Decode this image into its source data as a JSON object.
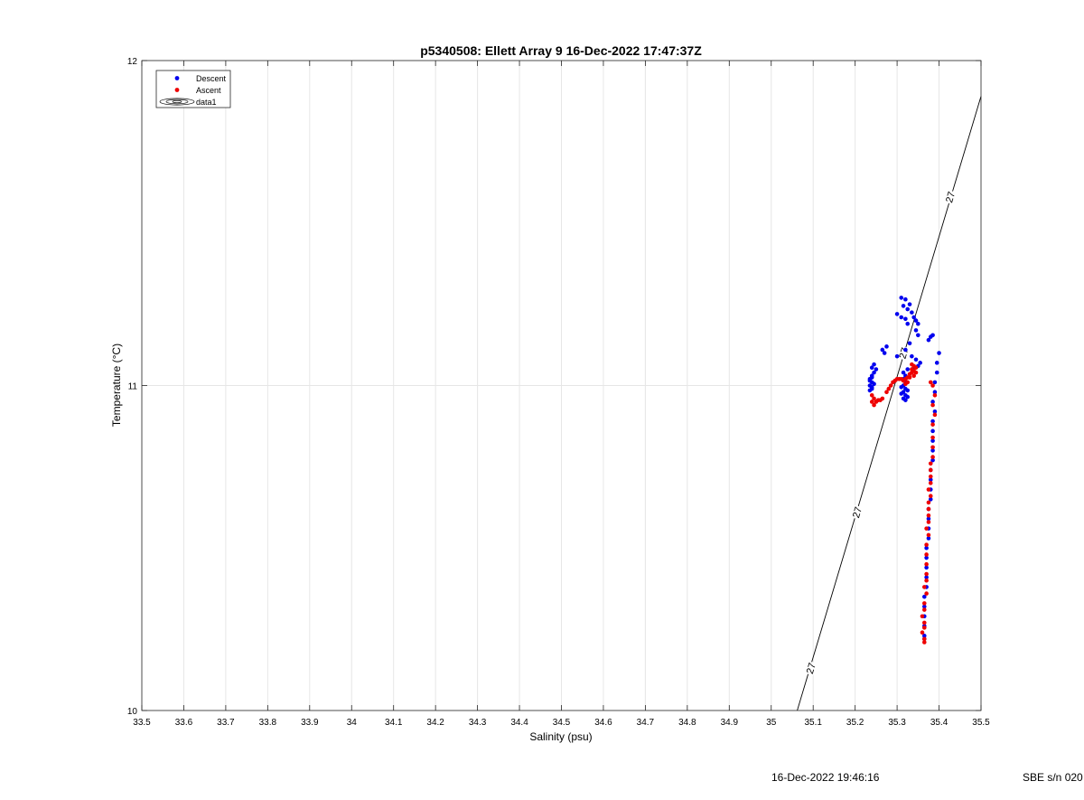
{
  "footer": {
    "timestamp": "16-Dec-2022 19:46:16",
    "serial": "SBE s/n 020"
  },
  "chart_data": {
    "type": "scatter",
    "title": "p5340508: Ellett Array 9 16-Dec-2022 17:47:37Z",
    "xlabel": "Salinity (psu)",
    "ylabel": "Temperature (°C)",
    "xlim": [
      33.5,
      35.5
    ],
    "ylim": [
      10,
      12
    ],
    "xticks": [
      33.5,
      33.6,
      33.7,
      33.8,
      33.9,
      34,
      34.1,
      34.2,
      34.3,
      34.4,
      34.5,
      34.6,
      34.7,
      34.8,
      34.9,
      35,
      35.1,
      35.2,
      35.3,
      35.4,
      35.5
    ],
    "xtick_labels": [
      "33.5",
      "33.6",
      "33.7",
      "33.8",
      "33.9",
      "34",
      "34.1",
      "34.2",
      "34.3",
      "34.4",
      "34.5",
      "34.6",
      "34.7",
      "34.8",
      "34.9",
      "35",
      "35.1",
      "35.2",
      "35.3",
      "35.4",
      "35.5"
    ],
    "yticks": [
      10,
      11,
      12
    ],
    "ytick_labels": [
      "10",
      "11",
      "12"
    ],
    "grid": true,
    "legend": {
      "placement": "top-left",
      "entries": [
        "Descent",
        "Ascent",
        "data1"
      ]
    },
    "colors": {
      "descent": "#0000ee",
      "ascent": "#ee0000",
      "contour": "#000000",
      "grid": "#e6e6e6"
    },
    "contour": {
      "level_label": "27",
      "points": [
        [
          35.062,
          10.0
        ],
        [
          35.5,
          11.89
        ]
      ],
      "labels": [
        {
          "x": 35.094,
          "y": 10.13
        },
        {
          "x": 35.204,
          "y": 10.61
        },
        {
          "x": 35.315,
          "y": 11.1
        },
        {
          "x": 35.426,
          "y": 11.58
        }
      ]
    },
    "series": [
      {
        "name": "Descent",
        "points": [
          [
            35.31,
            11.27
          ],
          [
            35.32,
            11.265
          ],
          [
            35.33,
            11.25
          ],
          [
            35.315,
            11.245
          ],
          [
            35.325,
            11.235
          ],
          [
            35.3,
            11.22
          ],
          [
            35.335,
            11.225
          ],
          [
            35.34,
            11.21
          ],
          [
            35.31,
            11.21
          ],
          [
            35.345,
            11.2
          ],
          [
            35.35,
            11.19
          ],
          [
            35.325,
            11.19
          ],
          [
            35.32,
            11.205
          ],
          [
            35.345,
            11.17
          ],
          [
            35.35,
            11.155
          ],
          [
            35.38,
            11.15
          ],
          [
            35.385,
            11.155
          ],
          [
            35.375,
            11.14
          ],
          [
            35.33,
            11.13
          ],
          [
            35.32,
            11.11
          ],
          [
            35.335,
            11.09
          ],
          [
            35.345,
            11.08
          ],
          [
            35.355,
            11.07
          ],
          [
            35.35,
            11.06
          ],
          [
            35.34,
            11.055
          ],
          [
            35.325,
            11.05
          ],
          [
            35.25,
            11.05
          ],
          [
            35.245,
            11.065
          ],
          [
            35.24,
            11.055
          ],
          [
            35.245,
            11.04
          ],
          [
            35.24,
            11.03
          ],
          [
            35.235,
            11.02
          ],
          [
            35.24,
            11.01
          ],
          [
            35.235,
            11.0
          ],
          [
            35.24,
            10.99
          ],
          [
            35.235,
            10.985
          ],
          [
            35.24,
            10.995
          ],
          [
            35.245,
            11.005
          ],
          [
            35.235,
            11.015
          ],
          [
            35.24,
            11.025
          ],
          [
            35.27,
            11.1
          ],
          [
            35.275,
            11.12
          ],
          [
            35.265,
            11.11
          ],
          [
            35.3,
            11.09
          ],
          [
            35.315,
            11.04
          ],
          [
            35.32,
            11.03
          ],
          [
            35.315,
            11.02
          ],
          [
            35.32,
            11.01
          ],
          [
            35.315,
            11.0
          ],
          [
            35.32,
            10.99
          ],
          [
            35.315,
            10.98
          ],
          [
            35.32,
            10.97
          ],
          [
            35.315,
            10.96
          ],
          [
            35.32,
            10.955
          ],
          [
            35.325,
            10.965
          ],
          [
            35.31,
            10.975
          ],
          [
            35.325,
            10.985
          ],
          [
            35.31,
            10.995
          ],
          [
            35.4,
            11.1
          ],
          [
            35.395,
            11.07
          ],
          [
            35.395,
            11.04
          ],
          [
            35.39,
            11.01
          ],
          [
            35.39,
            10.98
          ],
          [
            35.385,
            10.95
          ],
          [
            35.39,
            10.92
          ],
          [
            35.385,
            10.89
          ],
          [
            35.385,
            10.86
          ],
          [
            35.385,
            10.83
          ],
          [
            35.385,
            10.8
          ],
          [
            35.385,
            10.77
          ],
          [
            35.38,
            10.74
          ],
          [
            35.38,
            10.71
          ],
          [
            35.38,
            10.68
          ],
          [
            35.38,
            10.65
          ],
          [
            35.375,
            10.62
          ],
          [
            35.375,
            10.59
          ],
          [
            35.375,
            10.56
          ],
          [
            35.375,
            10.53
          ],
          [
            35.37,
            10.5
          ],
          [
            35.37,
            10.47
          ],
          [
            35.37,
            10.44
          ],
          [
            35.37,
            10.41
          ],
          [
            35.37,
            10.38
          ],
          [
            35.365,
            10.35
          ],
          [
            35.365,
            10.32
          ],
          [
            35.365,
            10.29
          ],
          [
            35.365,
            10.26
          ],
          [
            35.365,
            10.23
          ],
          [
            35.365,
            10.22
          ]
        ]
      },
      {
        "name": "Ascent",
        "points": [
          [
            35.365,
            10.21
          ],
          [
            35.365,
            10.22
          ],
          [
            35.36,
            10.24
          ],
          [
            35.365,
            10.255
          ],
          [
            35.365,
            10.27
          ],
          [
            35.36,
            10.29
          ],
          [
            35.365,
            10.31
          ],
          [
            35.365,
            10.33
          ],
          [
            35.37,
            10.36
          ],
          [
            35.365,
            10.38
          ],
          [
            35.37,
            10.4
          ],
          [
            35.37,
            10.42
          ],
          [
            35.37,
            10.45
          ],
          [
            35.37,
            10.48
          ],
          [
            35.37,
            10.51
          ],
          [
            35.375,
            10.54
          ],
          [
            35.37,
            10.56
          ],
          [
            35.375,
            10.58
          ],
          [
            35.375,
            10.6
          ],
          [
            35.375,
            10.62
          ],
          [
            35.375,
            10.64
          ],
          [
            35.38,
            10.66
          ],
          [
            35.375,
            10.68
          ],
          [
            35.38,
            10.7
          ],
          [
            35.38,
            10.72
          ],
          [
            35.38,
            10.74
          ],
          [
            35.38,
            10.76
          ],
          [
            35.385,
            10.78
          ],
          [
            35.385,
            10.81
          ],
          [
            35.385,
            10.84
          ],
          [
            35.385,
            10.88
          ],
          [
            35.39,
            10.91
          ],
          [
            35.385,
            10.94
          ],
          [
            35.39,
            10.97
          ],
          [
            35.385,
            11.0
          ],
          [
            35.38,
            11.01
          ],
          [
            35.24,
            10.97
          ],
          [
            35.245,
            10.96
          ],
          [
            35.24,
            10.95
          ],
          [
            35.245,
            10.94
          ],
          [
            35.25,
            10.95
          ],
          [
            35.255,
            10.955
          ],
          [
            35.26,
            10.955
          ],
          [
            35.265,
            10.96
          ],
          [
            35.275,
            10.98
          ],
          [
            35.28,
            10.99
          ],
          [
            35.285,
            11.0
          ],
          [
            35.29,
            11.01
          ],
          [
            35.295,
            11.015
          ],
          [
            35.3,
            11.02
          ],
          [
            35.305,
            11.02
          ],
          [
            35.31,
            11.02
          ],
          [
            35.315,
            11.015
          ],
          [
            35.32,
            11.02
          ],
          [
            35.325,
            11.025
          ],
          [
            35.33,
            11.035
          ],
          [
            35.335,
            11.04
          ],
          [
            35.34,
            11.045
          ],
          [
            35.345,
            11.04
          ],
          [
            35.335,
            11.05
          ],
          [
            35.34,
            11.03
          ],
          [
            35.33,
            11.025
          ],
          [
            35.325,
            11.01
          ],
          [
            35.32,
            11.005
          ],
          [
            35.34,
            11.06
          ],
          [
            35.345,
            11.055
          ],
          [
            35.335,
            11.065
          ]
        ]
      }
    ]
  }
}
